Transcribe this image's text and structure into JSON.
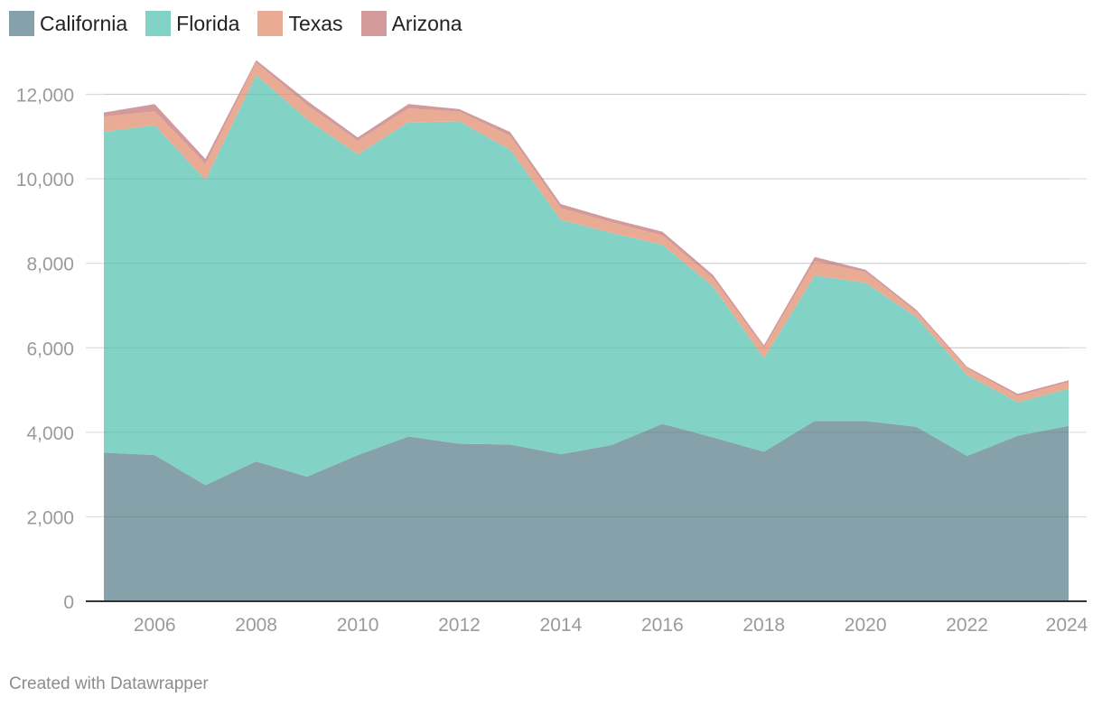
{
  "chart_data": {
    "type": "area",
    "stacked": true,
    "x": [
      2005,
      2006,
      2007,
      2008,
      2009,
      2010,
      2011,
      2012,
      2013,
      2014,
      2015,
      2016,
      2017,
      2018,
      2019,
      2020,
      2021,
      2022,
      2023,
      2024
    ],
    "series": [
      {
        "name": "California",
        "color": "#86a1a9",
        "values": [
          3520,
          3460,
          2750,
          3310,
          2950,
          3460,
          3900,
          3730,
          3710,
          3480,
          3700,
          4200,
          3880,
          3540,
          4270,
          4270,
          4130,
          3440,
          3920,
          4150
        ]
      },
      {
        "name": "Florida",
        "color": "#82d3c5",
        "values": [
          7590,
          7810,
          7220,
          9150,
          8460,
          7120,
          7440,
          7630,
          6980,
          5550,
          5020,
          4240,
          3570,
          2210,
          3440,
          3270,
          2600,
          1920,
          790,
          880
        ]
      },
      {
        "name": "Texas",
        "color": "#eaab95",
        "values": [
          360,
          330,
          380,
          290,
          340,
          320,
          330,
          230,
          330,
          280,
          250,
          220,
          190,
          250,
          340,
          250,
          120,
          150,
          150,
          160
        ]
      },
      {
        "name": "Arizona",
        "color": "#d29a9a",
        "values": [
          100,
          170,
          120,
          60,
          100,
          80,
          100,
          60,
          90,
          90,
          80,
          90,
          80,
          60,
          100,
          60,
          50,
          40,
          50,
          40
        ]
      }
    ],
    "x_tick_labels": [
      "2006",
      "2008",
      "2010",
      "2012",
      "2014",
      "2016",
      "2018",
      "2020",
      "2022",
      "2024"
    ],
    "y_tick_labels": [
      "0",
      "2,000",
      "4,000",
      "6,000",
      "8,000",
      "10,000",
      "12,000"
    ],
    "y_ticks": [
      0,
      2000,
      4000,
      6000,
      8000,
      10000,
      12000
    ],
    "x_ticks": [
      2006,
      2008,
      2010,
      2012,
      2014,
      2016,
      2018,
      2020,
      2022,
      2024
    ],
    "xlim": [
      2005,
      2024
    ],
    "ylim": [
      0,
      12000
    ],
    "grid": true,
    "legend_position": "top-left"
  },
  "credit": "Created with Datawrapper"
}
